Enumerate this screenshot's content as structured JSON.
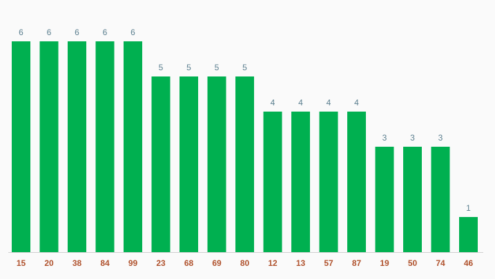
{
  "chart_data": {
    "type": "bar",
    "categories": [
      "15",
      "20",
      "38",
      "84",
      "99",
      "23",
      "68",
      "69",
      "80",
      "12",
      "13",
      "57",
      "87",
      "19",
      "50",
      "74",
      "46"
    ],
    "values": [
      6,
      6,
      6,
      6,
      6,
      5,
      5,
      5,
      5,
      4,
      4,
      4,
      4,
      3,
      3,
      3,
      1
    ],
    "color": "#00b050"
  }
}
